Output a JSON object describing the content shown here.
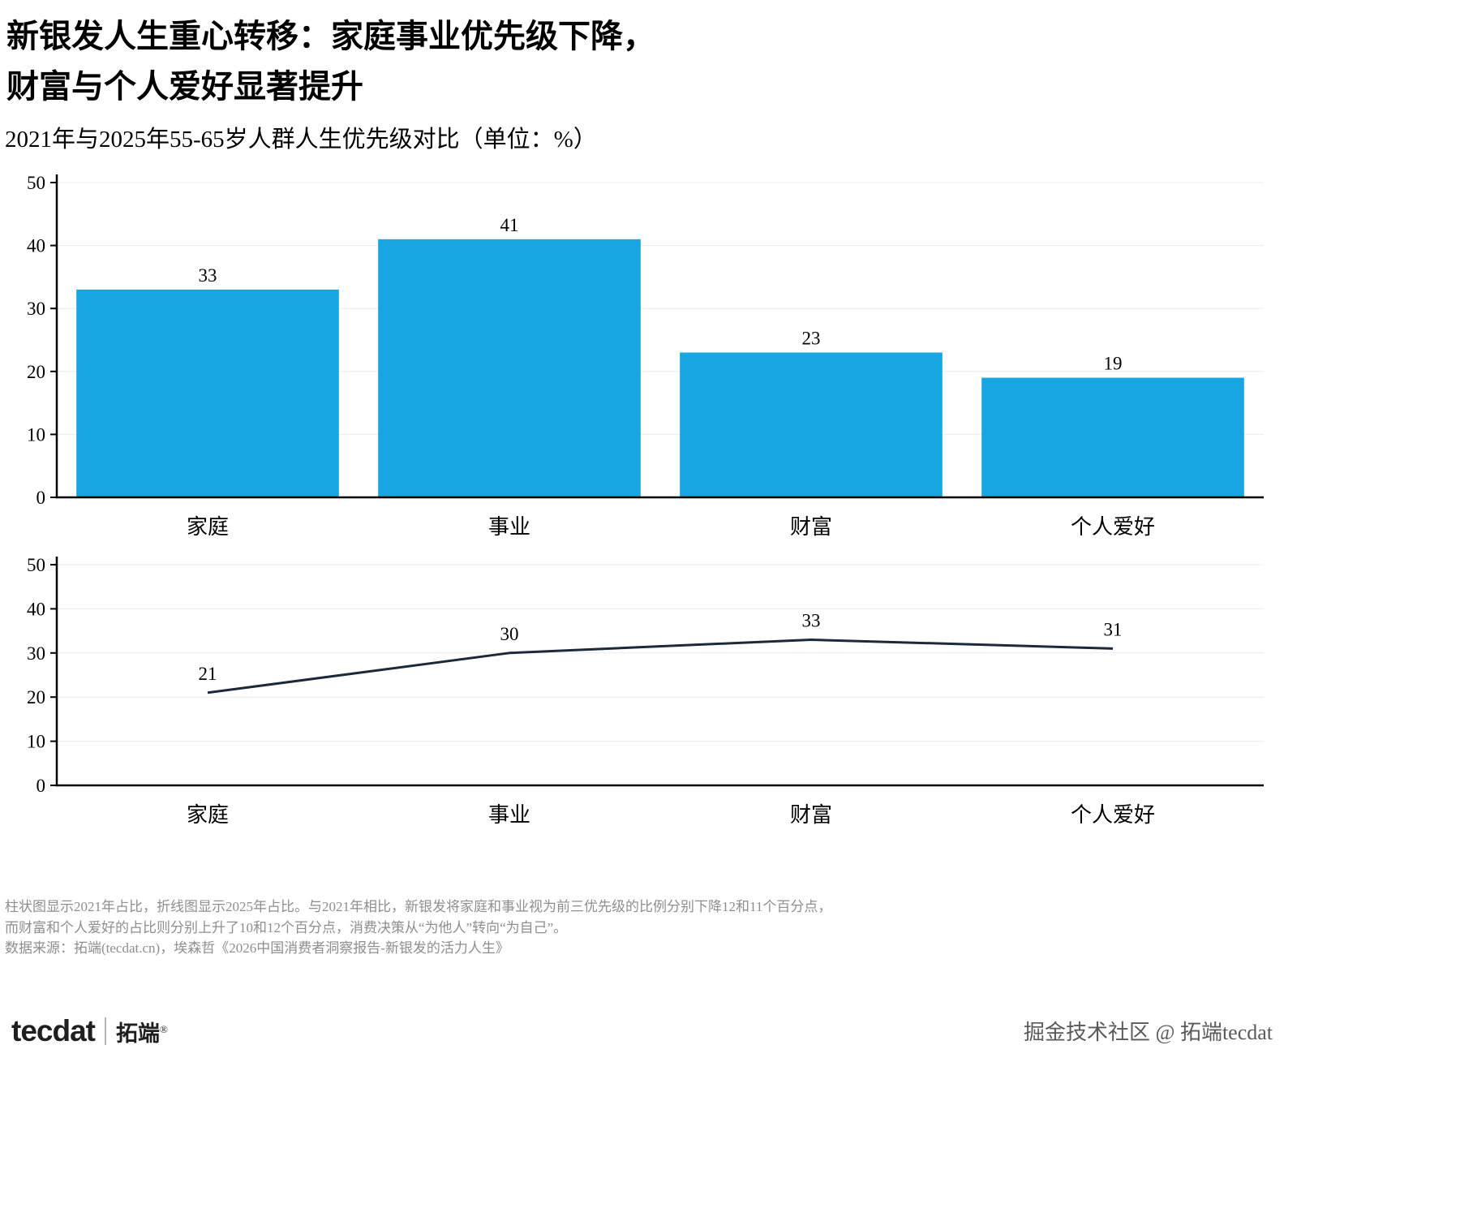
{
  "header": {
    "title_line1": "新银发人生重心转移：家庭事业优先级下降，",
    "title_line2": "财富与个人爱好显著提升",
    "subtitle": "2021年与2025年55-65岁人群人生优先级对比（单位：%）"
  },
  "chart_data": [
    {
      "type": "bar",
      "series_name": "2021年占比",
      "categories": [
        "家庭",
        "事业",
        "财富",
        "个人爱好"
      ],
      "values": [
        33,
        41,
        23,
        19
      ],
      "unit": "%",
      "ylim": [
        0,
        50
      ],
      "yticks": [
        0,
        10,
        20,
        30,
        40,
        50
      ],
      "grid": true,
      "legend": "none",
      "bar_color": "#18a6e2"
    },
    {
      "type": "line",
      "series_name": "2025年占比",
      "categories": [
        "家庭",
        "事业",
        "财富",
        "个人爱好"
      ],
      "values": [
        21,
        30,
        33,
        31
      ],
      "unit": "%",
      "ylim": [
        0,
        50
      ],
      "yticks": [
        0,
        10,
        20,
        30,
        40,
        50
      ],
      "grid": true,
      "legend": "none",
      "line_color": "#1b2a3b"
    }
  ],
  "colors": {
    "bar": "#18a6e2",
    "line": "#1b2a3b",
    "grid": "#ececec",
    "axis": "#000000"
  },
  "footnote": {
    "line1": "柱状图显示2021年占比，折线图显示2025年占比。与2021年相比，新银发将家庭和事业视为前三优先级的比例分别下降12和11个百分点，",
    "line2": "而财富和个人爱好的占比则分别上升了10和12个百分点，消费决策从“为他人”转向“为自己”。",
    "line3": "数据来源：拓端(tecdat.cn)，埃森哲《2026中国消费者洞察报告-新银发的活力人生》"
  },
  "footer": {
    "logo_text": "tecdat",
    "logo_brand": "拓端",
    "logo_reg": "®",
    "watermark": "掘金技术社区 @ 拓端tecdat"
  }
}
